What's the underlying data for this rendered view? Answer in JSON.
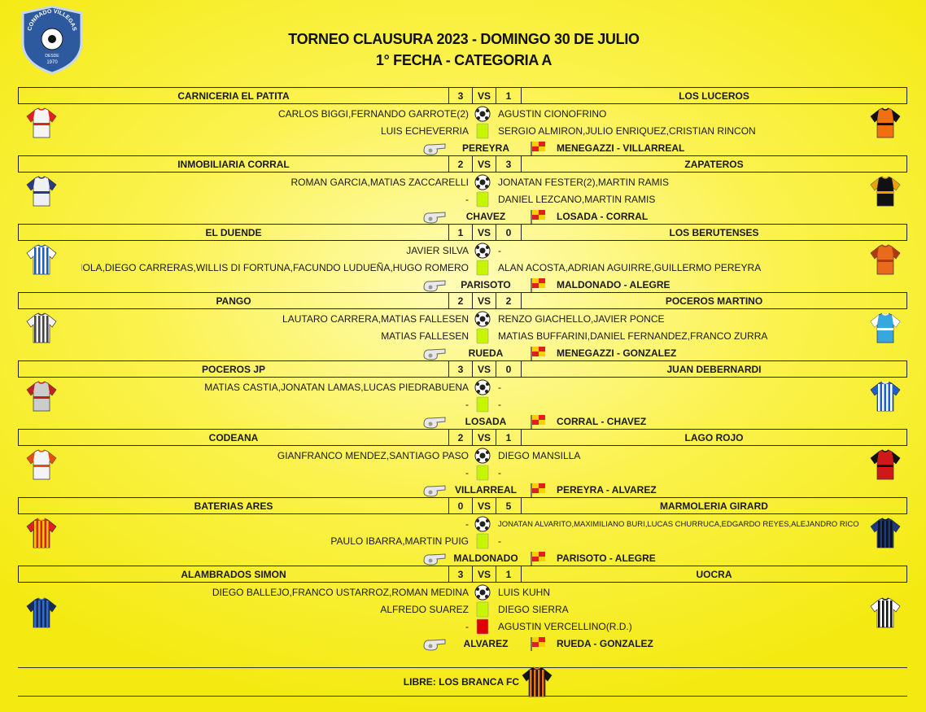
{
  "logo": {
    "name": "CONRADO VILLEGAS",
    "since": "DESDE",
    "year": "1970"
  },
  "header": {
    "title": "TORNEO CLAUSURA 2023 - DOMINGO 30 DE JULIO",
    "subtitle": "1° FECHA - CATEGORIA A"
  },
  "matches": [
    {
      "home": "CARNICERIA EL PATITA",
      "home_score": 3,
      "vs": "VS",
      "away_score": 1,
      "away": "LOS LUCEROS",
      "goals": {
        "home": "CARLOS BIGGI,FERNANDO GARROTE(2)",
        "away": "AGUSTIN CIONOFRINO"
      },
      "yellow_cards": {
        "home": "LUIS ECHEVERRIA",
        "away": "SERGIO ALMIRON,JULIO ENRIQUEZ,CRISTIAN RINCON"
      },
      "referee": "PEREYRA",
      "assistants": "MENEGAZZI - VILLARREAL"
    },
    {
      "home": "INMOBILIARIA CORRAL",
      "home_score": 2,
      "vs": "VS",
      "away_score": 3,
      "away": "ZAPATEROS",
      "goals": {
        "home": "ROMAN GARCIA,MATIAS ZACCARELLI",
        "away": "JONATAN FESTER(2),MARTIN RAMIS"
      },
      "yellow_cards": {
        "home": "-",
        "away": "DANIEL LEZCANO,MARTIN RAMIS"
      },
      "referee": "CHAVEZ",
      "assistants": "LOSADA - CORRAL"
    },
    {
      "home": "EL DUENDE",
      "home_score": 1,
      "vs": "VS",
      "away_score": 0,
      "away": "LOS BERUTENSES",
      "goals": {
        "home": "JAVIER SILVA",
        "away": "-"
      },
      "yellow_cards": {
        "home": "EMANUEL BOIOLA,DIEGO CARRERAS,WILLIS DI FORTUNA,FACUNDO LUDUEÑA,HUGO ROMERO",
        "away": "ALAN ACOSTA,ADRIAN AGUIRRE,GUILLERMO PEREYRA"
      },
      "referee": "PARISOTO",
      "assistants": "MALDONADO - ALEGRE"
    },
    {
      "home": "PANGO",
      "home_score": 2,
      "vs": "VS",
      "away_score": 2,
      "away": "POCEROS MARTINO",
      "goals": {
        "home": "LAUTARO CARRERA,MATIAS FALLESEN",
        "away": "RENZO GIACHELLO,JAVIER PONCE"
      },
      "yellow_cards": {
        "home": "MATIAS FALLESEN",
        "away": "MATIAS BUFFARINI,DANIEL FERNANDEZ,FRANCO ZURRA"
      },
      "referee": "RUEDA",
      "assistants": "MENEGAZZI - GONZALEZ"
    },
    {
      "home": "POCEROS JP",
      "home_score": 3,
      "vs": "VS",
      "away_score": 0,
      "away": "JUAN DEBERNARDI",
      "goals": {
        "home": "MATIAS CASTIA,JONATAN LAMAS,LUCAS PIEDRABUENA",
        "away": "-"
      },
      "yellow_cards": {
        "home": "-",
        "away": "-"
      },
      "referee": "LOSADA",
      "assistants": "CORRAL - CHAVEZ"
    },
    {
      "home": "CODEANA",
      "home_score": 2,
      "vs": "VS",
      "away_score": 1,
      "away": "LAGO ROJO",
      "goals": {
        "home": "GIANFRANCO MENDEZ,SANTIAGO PASO",
        "away": "DIEGO MANSILLA"
      },
      "yellow_cards": {
        "home": "-",
        "away": "-"
      },
      "referee": "VILLARREAL",
      "assistants": "PEREYRA - ALVAREZ"
    },
    {
      "home": "BATERIAS ARES",
      "home_score": 0,
      "vs": "VS",
      "away_score": 5,
      "away": "MARMOLERIA GIRARD",
      "goals": {
        "home": "-",
        "away": "JONATAN ALVARITO,MAXIMILIANO BURI,LUCAS CHURRUCA,EDGARDO REYES,ALEJANDRO RICO"
      },
      "yellow_cards": {
        "home": "PAULO IBARRA,MARTIN PUIG",
        "away": "-"
      },
      "referee": "MALDONADO",
      "assistants": "PARISOTO - ALEGRE"
    },
    {
      "home": "ALAMBRADOS SIMON",
      "home_score": 3,
      "vs": "VS",
      "away_score": 1,
      "away": "UOCRA",
      "goals": {
        "home": "DIEGO BALLEJO,FRANCO USTARROZ,ROMAN MEDINA",
        "away": "LUIS KUHN"
      },
      "yellow_cards": {
        "home": "ALFREDO SUAREZ",
        "away": "DIEGO SIERRA"
      },
      "red_cards": {
        "home": "-",
        "away": "AGUSTIN VERCELLINO(R.D.)"
      },
      "referee": "ALVAREZ",
      "assistants": "RUEDA - GONZALEZ"
    }
  ],
  "bye": "LIBRE: LOS BRANCA FC"
}
